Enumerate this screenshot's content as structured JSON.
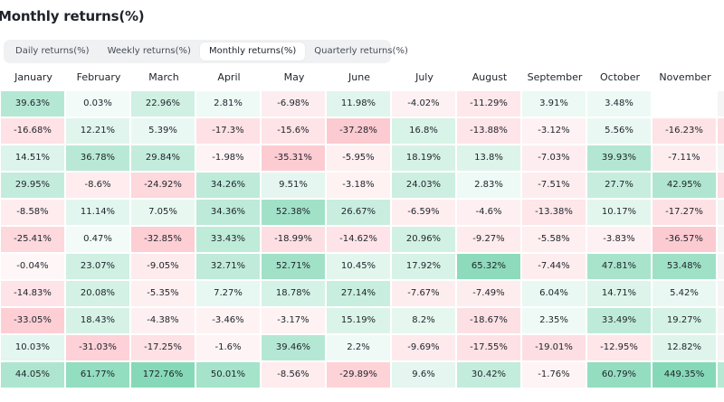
{
  "title": "Monthly returns(%)",
  "tabs": [
    {
      "label": "Daily returns(%)",
      "active": false
    },
    {
      "label": "Weekly returns(%)",
      "active": false
    },
    {
      "label": "Monthly returns(%)",
      "active": true
    },
    {
      "label": "Quarterly returns(%)",
      "active": false
    }
  ],
  "months": [
    "January",
    "February",
    "March",
    "April",
    "May",
    "June",
    "July",
    "August",
    "September",
    "October",
    "November"
  ],
  "rows": [
    [
      "39.63%",
      "0.03%",
      "22.96%",
      "2.81%",
      "-6.98%",
      "11.98%",
      "-4.02%",
      "-11.29%",
      "3.91%",
      "3.48%",
      ""
    ],
    [
      "-16.68%",
      "12.21%",
      "5.39%",
      "-17.3%",
      "-15.6%",
      "-37.28%",
      "16.8%",
      "-13.88%",
      "-3.12%",
      "5.56%",
      "-16.23%"
    ],
    [
      "14.51%",
      "36.78%",
      "29.84%",
      "-1.98%",
      "-35.31%",
      "-5.95%",
      "18.19%",
      "13.8%",
      "-7.03%",
      "39.93%",
      "-7.11%"
    ],
    [
      "29.95%",
      "-8.6%",
      "-24.92%",
      "34.26%",
      "9.51%",
      "-3.18%",
      "24.03%",
      "2.83%",
      "-7.51%",
      "27.7%",
      "42.95%"
    ],
    [
      "-8.58%",
      "11.14%",
      "7.05%",
      "34.36%",
      "52.38%",
      "26.67%",
      "-6.59%",
      "-4.6%",
      "-13.38%",
      "10.17%",
      "-17.27%"
    ],
    [
      "-25.41%",
      "0.47%",
      "-32.85%",
      "33.43%",
      "-18.99%",
      "-14.62%",
      "20.96%",
      "-9.27%",
      "-5.58%",
      "-3.83%",
      "-36.57%"
    ],
    [
      "-0.04%",
      "23.07%",
      "-9.05%",
      "32.71%",
      "52.71%",
      "10.45%",
      "17.92%",
      "65.32%",
      "-7.44%",
      "47.81%",
      "53.48%"
    ],
    [
      "-14.83%",
      "20.08%",
      "-5.35%",
      "7.27%",
      "18.78%",
      "27.14%",
      "-7.67%",
      "-7.49%",
      "6.04%",
      "14.71%",
      "5.42%"
    ],
    [
      "-33.05%",
      "18.43%",
      "-4.38%",
      "-3.46%",
      "-3.17%",
      "15.19%",
      "8.2%",
      "-18.67%",
      "2.35%",
      "33.49%",
      "19.27%"
    ],
    [
      "10.03%",
      "-31.03%",
      "-17.25%",
      "-1.6%",
      "39.46%",
      "2.2%",
      "-9.69%",
      "-17.55%",
      "-19.01%",
      "-12.95%",
      "12.82%"
    ],
    [
      "44.05%",
      "61.77%",
      "172.76%",
      "50.01%",
      "-8.56%",
      "-29.89%",
      "9.6%",
      "30.42%",
      "-1.76%",
      "60.79%",
      "449.35%"
    ]
  ],
  "colors": {
    "positive": "#2ebd85",
    "negative": "#f6465d",
    "text": "#1e2329"
  }
}
